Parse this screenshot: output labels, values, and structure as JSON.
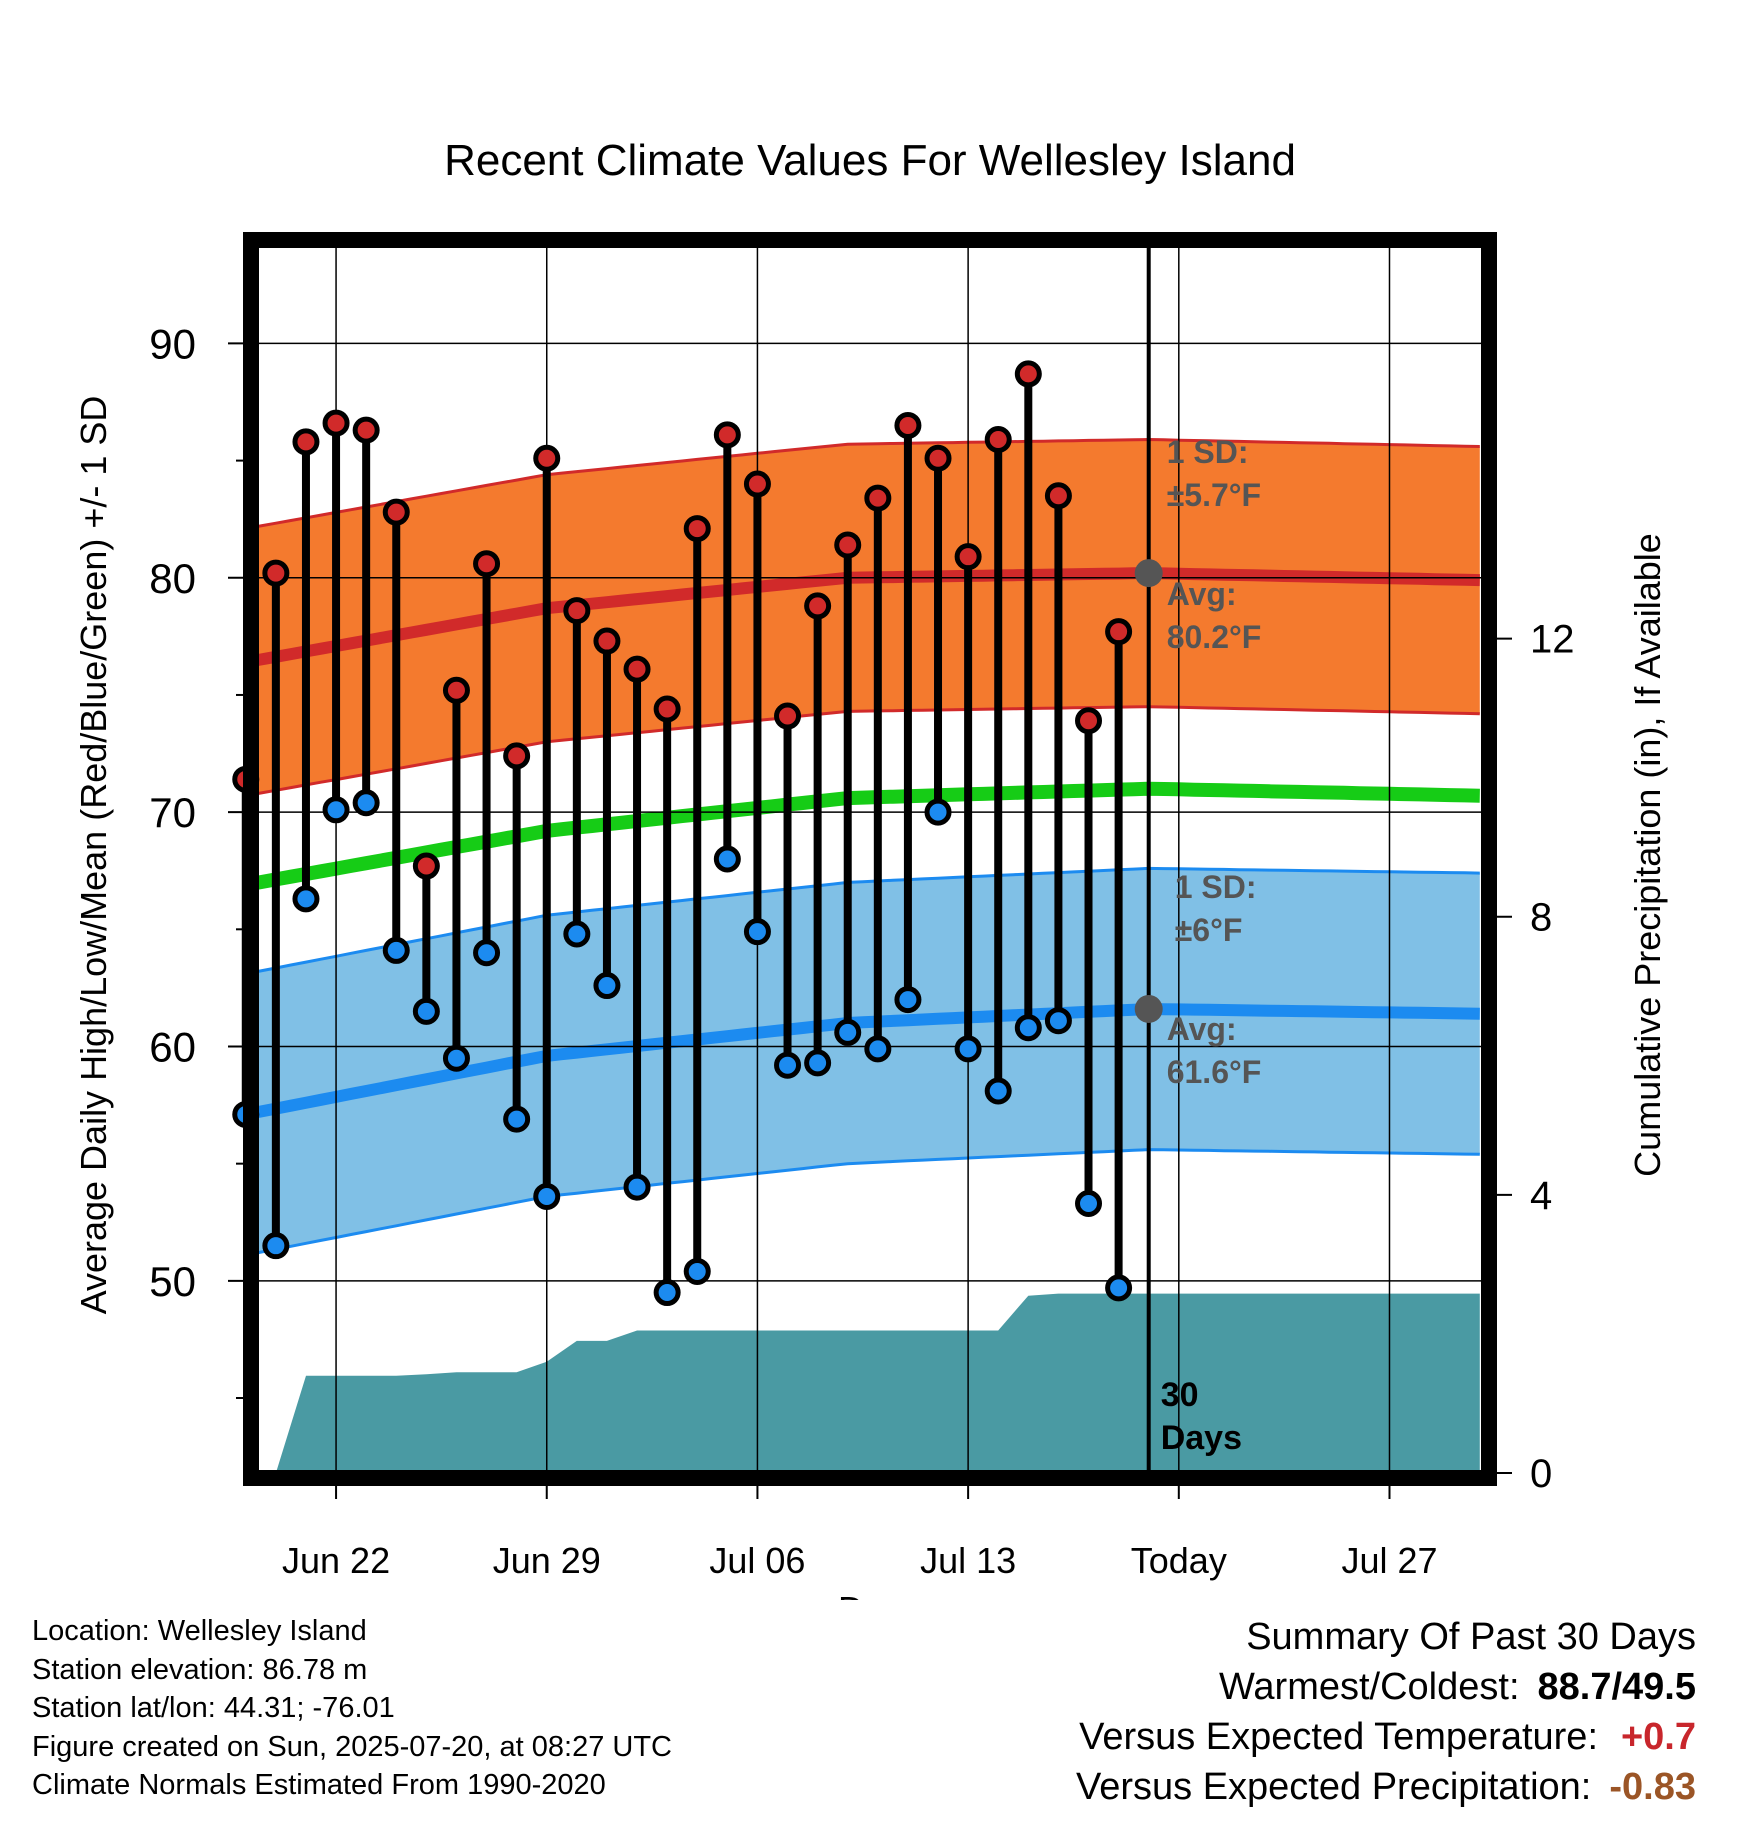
{
  "chart_data": {
    "type": "line",
    "title": "Recent Climate Values For Wellesley Island",
    "xlabel": "Day",
    "ylabel": "Average Daily High/Low/Mean (Red/Blue/Green) +/- 1 SD",
    "y2label": "Cumulative Precipitation (in), If Available",
    "x_tick_labels": [
      "Jun 22",
      "Jun 29",
      "Jul 06",
      "Jul 13",
      "Today",
      "Jul 27"
    ],
    "y_ticks": [
      "90",
      "80",
      "70",
      "60",
      "50"
    ],
    "y2_ticks": [
      "12",
      "8",
      "4",
      "0"
    ],
    "ylim": [
      41.8,
      94.2
    ],
    "y2lim": [
      0,
      17.66
    ],
    "today_marker_label": "30 Days",
    "x_dates": [
      "Jun 19",
      "Jun 20",
      "Jun 21",
      "Jun 22",
      "Jun 23",
      "Jun 24",
      "Jun 25",
      "Jun 26",
      "Jun 27",
      "Jun 28",
      "Jun 29",
      "Jun 30",
      "Jul 01",
      "Jul 02",
      "Jul 03",
      "Jul 04",
      "Jul 05",
      "Jul 06",
      "Jul 07",
      "Jul 08",
      "Jul 09",
      "Jul 10",
      "Jul 11",
      "Jul 12",
      "Jul 13",
      "Jul 14",
      "Jul 15",
      "Jul 16",
      "Jul 17",
      "Jul 18",
      "Jul 19",
      "Jul 20",
      "Jul 21",
      "Jul 22",
      "Jul 23",
      "Jul 24",
      "Jul 25",
      "Jul 26",
      "Jul 27",
      "Jul 28",
      "Jul 29",
      "Jul 30"
    ],
    "daily_high": [
      71.4,
      80.2,
      85.8,
      86.6,
      86.3,
      82.8,
      67.7,
      75.2,
      80.6,
      72.4,
      85.1,
      78.6,
      77.3,
      76.1,
      74.4,
      82.1,
      86.1,
      84.0,
      74.1,
      78.8,
      81.4,
      83.4,
      86.5,
      85.1,
      80.9,
      85.9,
      88.7,
      83.5,
      73.9,
      77.7
    ],
    "daily_low": [
      57.1,
      51.5,
      66.3,
      70.1,
      70.4,
      64.1,
      61.5,
      59.5,
      64.0,
      56.9,
      53.6,
      64.8,
      62.6,
      54.0,
      49.5,
      50.4,
      68.0,
      64.9,
      59.2,
      59.3,
      60.6,
      59.9,
      62.0,
      70.0,
      59.9,
      58.1,
      60.8,
      61.1,
      53.3,
      49.7
    ],
    "series": [
      {
        "name": "Avg High",
        "x": [
          0,
          10,
          20,
          30,
          41
        ],
        "values": [
          76.4,
          78.7,
          80.0,
          80.2,
          79.9
        ],
        "sd_label": "1 SD:",
        "sd_value": "±5.7°F",
        "avg_label": "Avg:",
        "avg_value": "80.2°F",
        "sd": 5.7
      },
      {
        "name": "Avg Mean",
        "x": [
          0,
          10,
          20,
          30,
          41
        ],
        "values": [
          66.9,
          69.2,
          70.6,
          71.0,
          70.7
        ]
      },
      {
        "name": "Avg Low",
        "x": [
          0,
          10,
          20,
          30,
          41
        ],
        "values": [
          57.1,
          59.6,
          61.0,
          61.6,
          61.4
        ],
        "sd_label": "1 SD:",
        "sd_value": "±6°F",
        "avg_label": "Avg:",
        "avg_value": "61.6°F",
        "sd": 6.0
      }
    ],
    "cumulative_precip_x": [
      0,
      1,
      2,
      3,
      4,
      5,
      6,
      7,
      8,
      9,
      10,
      11,
      12,
      13,
      14,
      15,
      16,
      17,
      18,
      19,
      20,
      21,
      22,
      23,
      24,
      25,
      26,
      27,
      28,
      29,
      30,
      41
    ],
    "cumulative_precip": [
      0,
      0,
      1.4,
      1.4,
      1.4,
      1.4,
      1.42,
      1.45,
      1.45,
      1.45,
      1.6,
      1.9,
      1.9,
      2.05,
      2.05,
      2.05,
      2.05,
      2.05,
      2.05,
      2.05,
      2.05,
      2.05,
      2.05,
      2.05,
      2.05,
      2.05,
      2.55,
      2.58,
      2.58,
      2.58,
      2.58,
      2.58
    ],
    "colors": {
      "high": "#d12a2a",
      "high_band": "#f47a2e",
      "low": "#1c8bf0",
      "low_band": "#80c0e6",
      "mean": "#16cc16",
      "precip": "#4a9aa3",
      "avg_marker": "#555555",
      "annotation": "#555555"
    }
  },
  "info": {
    "location": "Location: Wellesley Island",
    "elevation": "Station elevation: 86.78 m",
    "latlon": "Station lat/lon: 44.31; -76.01",
    "created": "Figure created on Sun, 2025-07-20, at 08:27 UTC",
    "normals": "Climate Normals Estimated From 1990-2020"
  },
  "summary": {
    "heading": "Summary Of Past 30 Days",
    "warmest_label": "Warmest/Coldest:",
    "warmest_value": "88.7/49.5",
    "temp_label": "Versus Expected Temperature:",
    "temp_value": "+0.7",
    "precip_label": "Versus Expected Precipitation:",
    "precip_value": "-0.83"
  }
}
